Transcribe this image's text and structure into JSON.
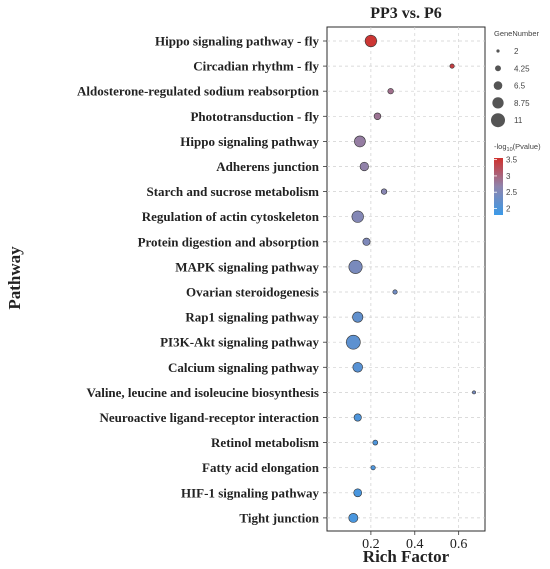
{
  "chart_data": {
    "type": "scatter",
    "title": "PP3 vs. P6",
    "xlabel": "Rich Factor",
    "ylabel": "Pathway",
    "xlim": [
      0.0,
      0.72
    ],
    "xticks": [
      0.2,
      0.4,
      0.6
    ],
    "xtick_labels": [
      "0.2",
      "0.4",
      "0.6"
    ],
    "grid": true,
    "legend_position": "right",
    "categories": [
      "Hippo signaling pathway - fly",
      "Circadian rhythm - fly",
      "Aldosterone-regulated sodium reabsorption",
      "Phototransduction - fly",
      "Hippo signaling pathway",
      "Adherens junction",
      "Starch and sucrose metabolism",
      "Regulation of actin cytoskeleton",
      "Protein digestion and absorption",
      "MAPK signaling pathway",
      "Ovarian steroidogenesis",
      "Rap1 signaling pathway",
      "PI3K-Akt signaling pathway",
      "Calcium signaling pathway",
      "Valine, leucine and isoleucine biosynthesis",
      "Neuroactive ligand-receptor interaction",
      "Retinol metabolism",
      "Fatty acid elongation",
      "HIF-1 signaling pathway",
      "Tight junction"
    ],
    "points": [
      {
        "pathway": "Hippo signaling pathway - fly",
        "rich_factor": 0.2,
        "gene_number": 9,
        "neg_log10_pvalue": 3.5
      },
      {
        "pathway": "Circadian rhythm - fly",
        "rich_factor": 0.57,
        "gene_number": 3,
        "neg_log10_pvalue": 3.4
      },
      {
        "pathway": "Aldosterone-regulated sodium reabsorption",
        "rich_factor": 0.29,
        "gene_number": 4,
        "neg_log10_pvalue": 2.9
      },
      {
        "pathway": "Phototransduction - fly",
        "rich_factor": 0.23,
        "gene_number": 5,
        "neg_log10_pvalue": 2.85
      },
      {
        "pathway": "Hippo signaling pathway",
        "rich_factor": 0.15,
        "gene_number": 8.5,
        "neg_log10_pvalue": 2.75
      },
      {
        "pathway": "Adherens junction",
        "rich_factor": 0.17,
        "gene_number": 6.5,
        "neg_log10_pvalue": 2.7
      },
      {
        "pathway": "Starch and sucrose metabolism",
        "rich_factor": 0.26,
        "gene_number": 4,
        "neg_log10_pvalue": 2.6
      },
      {
        "pathway": "Regulation of actin cytoskeleton",
        "rich_factor": 0.14,
        "gene_number": 9,
        "neg_log10_pvalue": 2.55
      },
      {
        "pathway": "Protein digestion and absorption",
        "rich_factor": 0.18,
        "gene_number": 5.5,
        "neg_log10_pvalue": 2.5
      },
      {
        "pathway": "MAPK signaling pathway",
        "rich_factor": 0.13,
        "gene_number": 10.5,
        "neg_log10_pvalue": 2.45
      },
      {
        "pathway": "Ovarian steroidogenesis",
        "rich_factor": 0.31,
        "gene_number": 3,
        "neg_log10_pvalue": 2.35
      },
      {
        "pathway": "Rap1 signaling pathway",
        "rich_factor": 0.14,
        "gene_number": 8,
        "neg_log10_pvalue": 2.2
      },
      {
        "pathway": "PI3K-Akt signaling pathway",
        "rich_factor": 0.12,
        "gene_number": 11,
        "neg_log10_pvalue": 2.15
      },
      {
        "pathway": "Calcium signaling pathway",
        "rich_factor": 0.14,
        "gene_number": 7.5,
        "neg_log10_pvalue": 2.1
      },
      {
        "pathway": "Valine, leucine and isoleucine biosynthesis",
        "rich_factor": 0.67,
        "gene_number": 2,
        "neg_log10_pvalue": 2.4
      },
      {
        "pathway": "Neuroactive ligand-receptor interaction",
        "rich_factor": 0.14,
        "gene_number": 5.5,
        "neg_log10_pvalue": 2.0
      },
      {
        "pathway": "Retinol metabolism",
        "rich_factor": 0.22,
        "gene_number": 3.5,
        "neg_log10_pvalue": 2.0
      },
      {
        "pathway": "Fatty acid elongation",
        "rich_factor": 0.21,
        "gene_number": 3,
        "neg_log10_pvalue": 2.0
      },
      {
        "pathway": "HIF-1 signaling pathway",
        "rich_factor": 0.14,
        "gene_number": 6,
        "neg_log10_pvalue": 1.95
      },
      {
        "pathway": "Tight junction",
        "rich_factor": 0.12,
        "gene_number": 7,
        "neg_log10_pvalue": 1.95
      }
    ],
    "size_legend": {
      "title": "GeneNumber",
      "values": [
        2,
        4.25,
        6.5,
        8.75,
        11
      ],
      "labels": [
        "2",
        "4.25",
        "6.5",
        "8.75",
        "11"
      ]
    },
    "color_legend": {
      "title_main": "-log",
      "title_sub": "10",
      "title_tail": "(Pvalue)",
      "range": [
        1.8,
        3.55
      ],
      "ticks": [
        2,
        2.5,
        3,
        3.5
      ],
      "tick_labels": [
        "2",
        "2.5",
        "3",
        "3.5"
      ],
      "color_low": "#3b9ae8",
      "color_mid": "#8f84ad",
      "color_high": "#d0312d"
    }
  }
}
